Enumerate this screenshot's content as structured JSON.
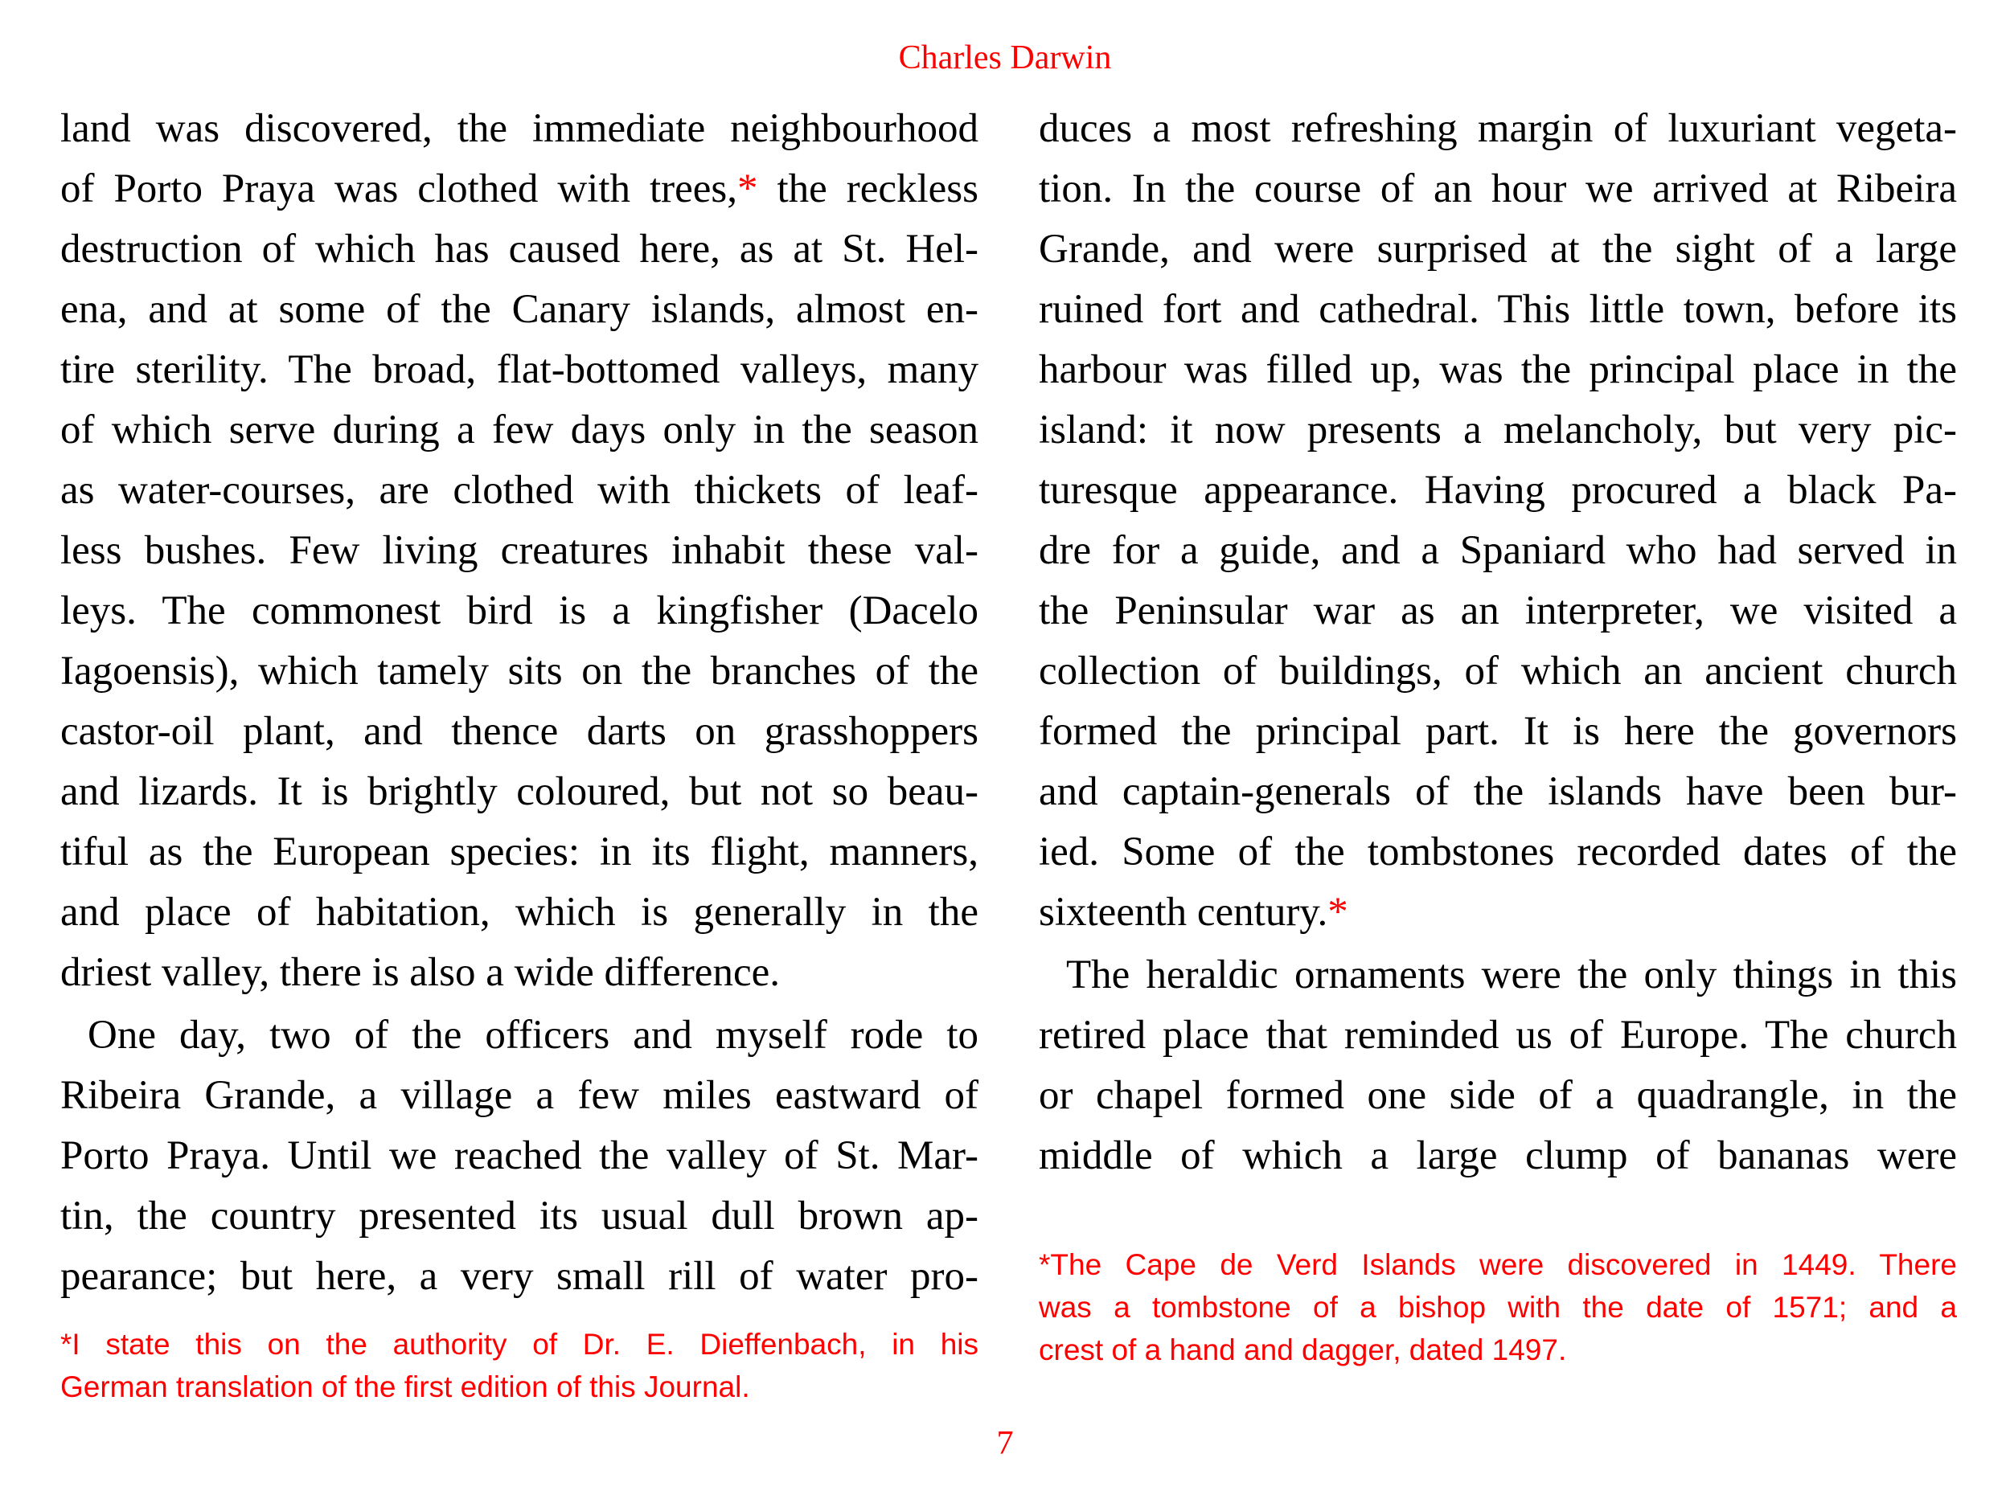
{
  "header": {
    "running_title": "Charles Darwin"
  },
  "left_column": {
    "paragraphs": [
      {
        "indent": false,
        "lines": [
          {
            "text": "land was discovered, the immediate neighbourhood"
          },
          {
            "text": "of Porto Praya was clothed with trees,",
            "mark": "*",
            "post": " the reckless"
          },
          {
            "text": "destruction of which has caused here, as at St. Hel-"
          },
          {
            "text": "ena, and at some of the Canary islands, almost en-"
          },
          {
            "text": "tire sterility. The broad, flat-bottomed valleys, many"
          },
          {
            "text": "of which serve during a few days only in the season"
          },
          {
            "text": "as water-courses, are clothed with thickets of leaf-"
          },
          {
            "text": "less bushes. Few living creatures inhabit these val-"
          },
          {
            "text": "leys. The commonest bird is a kingfisher (Dacelo"
          },
          {
            "text": "Iagoensis), which tamely sits on the branches of the"
          },
          {
            "text": "castor-oil plant, and thence darts on grasshoppers"
          },
          {
            "text": "and lizards. It is brightly coloured, but not so beau-"
          },
          {
            "text": "tiful as the European species: in its flight, manners,"
          },
          {
            "text": "and place of habitation, which is generally in the"
          },
          {
            "text": "driest valley, there is also a wide difference."
          }
        ]
      },
      {
        "indent": true,
        "continues": true,
        "lines": [
          {
            "text": "One day, two of the officers and myself rode to"
          },
          {
            "text": "Ribeira Grande, a village a few miles eastward of"
          },
          {
            "text": "Porto Praya. Until we reached the valley of St. Mar-"
          },
          {
            "text": "tin, the country presented its usual dull brown ap-"
          },
          {
            "text": "pearance; but here, a very small rill of water pro-"
          }
        ]
      }
    ],
    "footnote": [
      "*I state this on the authority of Dr. E. Dieffenbach, in his",
      "German translation of the first edition of this Journal."
    ]
  },
  "right_column": {
    "paragraphs": [
      {
        "indent": false,
        "lines": [
          {
            "text": "duces a most refreshing margin of luxuriant vegeta-"
          },
          {
            "text": "tion. In the course of an hour we arrived at Ribeira"
          },
          {
            "text": "Grande, and were surprised at the sight of a large"
          },
          {
            "text": "ruined fort and cathedral. This little town, before its"
          },
          {
            "text": "harbour was filled up, was the principal place in the"
          },
          {
            "text": "island: it now presents a melancholy, but very pic-"
          },
          {
            "text": "turesque appearance. Having procured a black Pa-"
          },
          {
            "text": "dre for a guide, and a Spaniard who had served in"
          },
          {
            "text": "the Peninsular war as an interpreter, we visited a"
          },
          {
            "text": "collection of buildings, of which an ancient church"
          },
          {
            "text": "formed the principal part. It is here the governors"
          },
          {
            "text": "and captain-generals of the islands have been bur-"
          },
          {
            "text": "ied. Some of the tombstones recorded dates of the"
          },
          {
            "text": "sixteenth century.",
            "mark": "*"
          }
        ]
      },
      {
        "indent": true,
        "continues": true,
        "lines": [
          {
            "text": "The heraldic ornaments were the only things in this"
          },
          {
            "text": "retired place that reminded us of Europe. The church"
          },
          {
            "text": "or chapel formed one side of a quadrangle, in the"
          },
          {
            "text": "middle of which a large clump of bananas were"
          }
        ]
      }
    ],
    "footnote": [
      "*The Cape de Verd Islands were discovered in 1449. There",
      "was a tombstone of a bishop with the date of 1571; and a",
      "crest of a hand and dagger, dated 1497."
    ]
  },
  "footer": {
    "page_number": "7"
  },
  "colors": {
    "accent": "#ff0000",
    "text": "#000000"
  }
}
